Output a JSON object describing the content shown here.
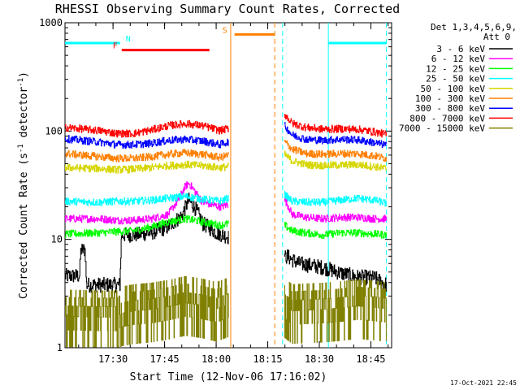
{
  "chart_data": {
    "type": "line",
    "title": "RHESSI Observing Summary Count Rates, Corrected",
    "xlabel": "Start Time (12-Nov-06 17:16:02)",
    "ylabel": "Corrected Count Rate (s",
    "ylabel_sup1": "-1",
    "ylabel_mid": " detector",
    "ylabel_sup2": "-1",
    "ylabel_end": ")",
    "yscale": "log",
    "ylim": [
      1,
      1000
    ],
    "xlim_min": [
      0,
      95
    ],
    "x_unit": "minutes after 17:16:02",
    "yticks": [
      {
        "value": 1,
        "label": "1"
      },
      {
        "value": 10,
        "label": "10"
      },
      {
        "value": 100,
        "label": "100"
      },
      {
        "value": 1000,
        "label": "1000"
      }
    ],
    "xticks": [
      {
        "value": 13.97,
        "label": "17:30"
      },
      {
        "value": 28.97,
        "label": "17:45"
      },
      {
        "value": 43.97,
        "label": "18:00"
      },
      {
        "value": 58.97,
        "label": "18:15"
      },
      {
        "value": 73.97,
        "label": "18:30"
      },
      {
        "value": 88.97,
        "label": "18:45"
      }
    ],
    "legend_header": [
      "Det 1,3,4,5,6,9,",
      "Att 0"
    ],
    "legend_position": "right",
    "series": [
      {
        "name": "3 - 6 keV",
        "color": "#000000",
        "x": [
          0,
          4.2,
          4.6,
          5.8,
          6.2,
          16.0,
          16.4,
          20,
          25,
          30,
          34,
          36,
          38,
          40,
          44,
          46,
          47.6,
          63.8,
          64.0,
          64.6,
          66,
          68,
          75,
          80,
          85,
          90,
          93.5
        ],
        "y": [
          4.6,
          4.6,
          8.0,
          8.0,
          3.8,
          3.8,
          11.0,
          11.0,
          11.5,
          13.0,
          16.5,
          23.0,
          19.0,
          14.0,
          11.5,
          11.0,
          10.5,
          8.0,
          6.8,
          7.0,
          6.5,
          6.0,
          5.5,
          4.9,
          4.5,
          4.4,
          3.8
        ]
      },
      {
        "name": "6 - 12 keV",
        "color": "#ff00ff",
        "x": [
          0,
          10,
          15,
          20,
          25,
          30,
          33,
          35,
          36,
          38,
          40,
          45,
          47.6,
          63.8,
          66,
          70,
          75,
          80,
          85,
          90,
          93.5
        ],
        "y": [
          15.5,
          15.5,
          15.0,
          15.0,
          15.5,
          17.0,
          23.0,
          31.0,
          33.0,
          27.0,
          22.0,
          20.0,
          21.0,
          23.5,
          17.0,
          16.0,
          15.5,
          16.0,
          16.0,
          15.5,
          15.5
        ]
      },
      {
        "name": "12 - 25 keV",
        "color": "#00ff00",
        "x": [
          0,
          10,
          15,
          20,
          25,
          30,
          35,
          40,
          45,
          47.6,
          63.8,
          66,
          70,
          75,
          80,
          85,
          90,
          93.5
        ],
        "y": [
          11.2,
          11.5,
          11.8,
          12.0,
          13.0,
          14.5,
          15.5,
          14.5,
          13.5,
          14.0,
          13.5,
          12.0,
          11.5,
          11.0,
          11.5,
          11.5,
          11.2,
          11.0
        ]
      },
      {
        "name": "25 - 50 keV",
        "color": "#00ffff",
        "x": [
          0,
          10,
          15,
          20,
          25,
          30,
          35,
          40,
          45,
          47.6,
          63.8,
          66,
          70,
          75,
          80,
          85,
          90,
          93.5
        ],
        "y": [
          22.5,
          22.0,
          22.5,
          22.5,
          23.0,
          24.0,
          25.0,
          23.5,
          22.5,
          24.0,
          26.0,
          22.5,
          22.0,
          22.0,
          23.0,
          24.0,
          23.0,
          21.5
        ]
      },
      {
        "name": "50 - 100 keV",
        "color": "#d6d600",
        "x": [
          0,
          10,
          15,
          20,
          25,
          30,
          35,
          40,
          45,
          47.6,
          63.8,
          66,
          70,
          75,
          80,
          85,
          90,
          93.5
        ],
        "y": [
          46.0,
          45.0,
          44.0,
          44.5,
          46.0,
          48.0,
          49.0,
          48.0,
          46.0,
          47.0,
          61.0,
          53.0,
          49.0,
          48.0,
          48.5,
          49.0,
          47.0,
          45.0
        ]
      },
      {
        "name": "100 - 300 keV",
        "color": "#ff8000",
        "x": [
          0,
          10,
          15,
          20,
          25,
          30,
          35,
          40,
          45,
          47.6,
          63.8,
          66,
          70,
          75,
          80,
          85,
          90,
          93.5
        ],
        "y": [
          62.0,
          58.0,
          56.0,
          56.0,
          58.0,
          61.0,
          63.0,
          61.0,
          57.0,
          60.0,
          80.0,
          68.0,
          62.0,
          61.0,
          62.0,
          62.0,
          59.0,
          56.0
        ]
      },
      {
        "name": "300 - 800 keV",
        "color": "#0000ff",
        "x": [
          0,
          10,
          15,
          20,
          25,
          30,
          35,
          40,
          45,
          47.6,
          63.8,
          66,
          70,
          75,
          80,
          85,
          90,
          93.5
        ],
        "y": [
          85.0,
          79.0,
          75.0,
          75.0,
          77.0,
          82.0,
          84.0,
          81.0,
          75.0,
          80.0,
          112.0,
          92.0,
          84.0,
          82.0,
          84.0,
          83.0,
          78.0,
          74.0
        ]
      },
      {
        "name": "800 - 7000 keV",
        "color": "#ff0000",
        "x": [
          0,
          10,
          15,
          20,
          25,
          30,
          35,
          40,
          45,
          47.6,
          63.8,
          66,
          70,
          75,
          80,
          85,
          90,
          93.5
        ],
        "y": [
          108.0,
          101.0,
          95.0,
          95.0,
          102.0,
          112.0,
          117.0,
          112.0,
          101.0,
          106.0,
          143.0,
          118.0,
          108.0,
          104.0,
          105.0,
          104.0,
          98.0,
          93.0
        ]
      },
      {
        "name": "7000 - 15000 keV",
        "color": "#808000",
        "x": [
          0,
          10,
          15,
          16.5,
          20,
          25,
          30,
          35,
          40,
          44,
          47.6,
          63.8,
          66,
          70,
          75,
          80,
          85,
          90,
          93.5
        ],
        "y": [
          1.6,
          1.5,
          1.5,
          2.0,
          2.3,
          2.5,
          2.9,
          3.5,
          3.1,
          2.6,
          3.3,
          3.2,
          2.3,
          2.4,
          2.5,
          2.7,
          3.0,
          2.8,
          2.6
        ]
      }
    ],
    "attenuator_markers": [
      {
        "label": "N",
        "color": "#00ffff",
        "style": "dashed",
        "x": 16.0,
        "level": 650,
        "bar_start": 0,
        "bar_end": 16.0
      },
      {
        "label": "F",
        "color": "#ff0000",
        "style": "solid",
        "x": 16.5,
        "level": 560,
        "bar_start": 16.5,
        "bar_end": 42.0
      },
      {
        "label": "S",
        "color": "#ff8000",
        "style": "dashed",
        "x": 49.3,
        "level": 780,
        "bar_start": 49.3,
        "bar_end": 61.0
      },
      {
        "label": "",
        "color": "#00ffff",
        "style": "dashed",
        "x": 76.6,
        "level": 650,
        "bar_start": 76.6,
        "bar_end": 93.5
      }
    ],
    "event_lines": [
      {
        "x": 48.2,
        "color": "#ff8000",
        "style": "solid"
      },
      {
        "x": 61.0,
        "color": "#ff8000",
        "style": "dashed"
      },
      {
        "x": 63.3,
        "color": "#00ffff",
        "style": "dashed"
      },
      {
        "x": 76.6,
        "color": "#00ffff",
        "style": "solid"
      },
      {
        "x": 93.5,
        "color": "#00ffff",
        "style": "dashed"
      }
    ],
    "data_gap": [
      47.6,
      63.8
    ],
    "timestamp": "17-Oct-2021 22:45"
  }
}
